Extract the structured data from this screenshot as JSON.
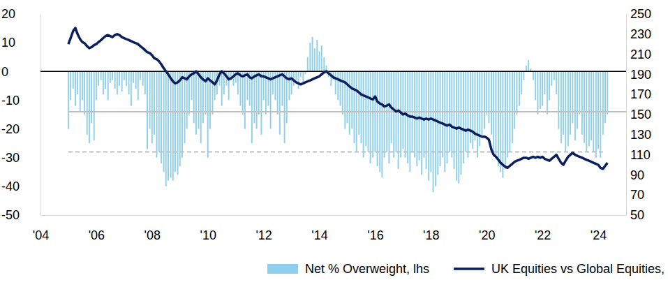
{
  "chart_data": {
    "type": "bar",
    "x": [
      2005,
      2005.08,
      2005.17,
      2005.25,
      2005.33,
      2005.42,
      2005.5,
      2005.58,
      2005.67,
      2005.75,
      2005.83,
      2005.92,
      2006,
      2006.08,
      2006.17,
      2006.25,
      2006.33,
      2006.42,
      2006.5,
      2006.58,
      2006.67,
      2006.75,
      2006.83,
      2006.92,
      2007,
      2007.08,
      2007.17,
      2007.25,
      2007.33,
      2007.42,
      2007.5,
      2007.58,
      2007.67,
      2007.75,
      2007.83,
      2007.92,
      2008,
      2008.08,
      2008.17,
      2008.25,
      2008.33,
      2008.42,
      2008.5,
      2008.58,
      2008.67,
      2008.75,
      2008.83,
      2008.92,
      2009,
      2009.08,
      2009.17,
      2009.25,
      2009.33,
      2009.42,
      2009.5,
      2009.58,
      2009.67,
      2009.75,
      2009.83,
      2009.92,
      2010,
      2010.08,
      2010.17,
      2010.25,
      2010.33,
      2010.42,
      2010.5,
      2010.58,
      2010.67,
      2010.75,
      2010.83,
      2010.92,
      2011,
      2011.08,
      2011.17,
      2011.25,
      2011.33,
      2011.42,
      2011.5,
      2011.58,
      2011.67,
      2011.75,
      2011.83,
      2011.92,
      2012,
      2012.08,
      2012.17,
      2012.25,
      2012.33,
      2012.42,
      2012.5,
      2012.58,
      2012.67,
      2012.75,
      2012.83,
      2012.92,
      2013,
      2013.08,
      2013.17,
      2013.25,
      2013.33,
      2013.42,
      2013.5,
      2013.58,
      2013.67,
      2013.75,
      2013.83,
      2013.92,
      2014,
      2014.08,
      2014.17,
      2014.25,
      2014.33,
      2014.42,
      2014.5,
      2014.58,
      2014.67,
      2014.75,
      2014.83,
      2014.92,
      2015,
      2015.08,
      2015.17,
      2015.25,
      2015.33,
      2015.42,
      2015.5,
      2015.58,
      2015.67,
      2015.75,
      2015.83,
      2015.92,
      2016,
      2016.08,
      2016.17,
      2016.25,
      2016.33,
      2016.42,
      2016.5,
      2016.58,
      2016.67,
      2016.75,
      2016.83,
      2016.92,
      2017,
      2017.08,
      2017.17,
      2017.25,
      2017.33,
      2017.42,
      2017.5,
      2017.58,
      2017.67,
      2017.75,
      2017.83,
      2017.92,
      2018,
      2018.08,
      2018.17,
      2018.25,
      2018.33,
      2018.42,
      2018.5,
      2018.58,
      2018.67,
      2018.75,
      2018.83,
      2018.92,
      2019,
      2019.08,
      2019.17,
      2019.25,
      2019.33,
      2019.42,
      2019.5,
      2019.58,
      2019.67,
      2019.75,
      2019.83,
      2019.92,
      2020,
      2020.08,
      2020.17,
      2020.25,
      2020.33,
      2020.42,
      2020.5,
      2020.58,
      2020.67,
      2020.75,
      2020.83,
      2020.92,
      2021,
      2021.08,
      2021.17,
      2021.25,
      2021.33,
      2021.42,
      2021.5,
      2021.58,
      2021.67,
      2021.75,
      2021.83,
      2021.92,
      2022,
      2022.08,
      2022.17,
      2022.25,
      2022.33,
      2022.42,
      2022.5,
      2022.58,
      2022.67,
      2022.75,
      2022.83,
      2022.92,
      2023,
      2023.08,
      2023.17,
      2023.25,
      2023.33,
      2023.42,
      2023.5,
      2023.58,
      2023.67,
      2023.75,
      2023.83,
      2023.92,
      2024,
      2024.08,
      2024.17,
      2024.25,
      2024.33
    ],
    "xlim": [
      2004,
      2025
    ],
    "xticks": [
      {
        "value": 2004,
        "label": "'04"
      },
      {
        "value": 2006,
        "label": "'06"
      },
      {
        "value": 2008,
        "label": "'08"
      },
      {
        "value": 2010,
        "label": "'10"
      },
      {
        "value": 2012,
        "label": "'12"
      },
      {
        "value": 2014,
        "label": "'14"
      },
      {
        "value": 2016,
        "label": "'16"
      },
      {
        "value": 2018,
        "label": "'18"
      },
      {
        "value": 2020,
        "label": "'20"
      },
      {
        "value": 2022,
        "label": "'22"
      },
      {
        "value": 2024,
        "label": "'24"
      }
    ],
    "ylim": [
      -50,
      20
    ],
    "yticks": [
      -50,
      -40,
      -30,
      -20,
      -10,
      0,
      10,
      20
    ],
    "y2lim": [
      50,
      250
    ],
    "y2ticks": [
      50,
      70,
      90,
      110,
      130,
      150,
      170,
      190,
      210,
      230,
      250
    ],
    "legend": "bottom",
    "series": [
      {
        "name": "Net % Overweight, lhs",
        "type": "bar",
        "color": "#8ecfee",
        "values": [
          -20,
          -10,
          -6,
          -12,
          -8,
          -14,
          -10,
          -15,
          -22,
          -25,
          -18,
          -24,
          -10,
          -5,
          -3,
          -8,
          -6,
          -10,
          -4,
          -3,
          -6,
          -8,
          -5,
          -7,
          -3,
          -5,
          -8,
          -12,
          -4,
          -6,
          -10,
          -3,
          -5,
          -8,
          -27,
          -20,
          -25,
          -22,
          -30,
          -28,
          -32,
          -35,
          -40,
          -38,
          -37,
          -38,
          -35,
          -36,
          -33,
          -30,
          -25,
          -20,
          -15,
          -10,
          -18,
          -22,
          -20,
          -25,
          -18,
          -15,
          -30,
          -20,
          -15,
          -10,
          -8,
          -5,
          -12,
          -8,
          -5,
          -10,
          -3,
          -5,
          -4,
          -8,
          -12,
          -15,
          -20,
          -10,
          -12,
          -25,
          -18,
          -20,
          -15,
          -22,
          -10,
          -15,
          -12,
          -20,
          -8,
          -10,
          -15,
          -22,
          -12,
          -25,
          -18,
          -10,
          -8,
          -5,
          -3,
          -6,
          -2,
          -4,
          -1,
          5,
          10,
          12,
          8,
          11,
          7,
          9,
          5,
          2,
          -2,
          -5,
          -3,
          -8,
          -10,
          -12,
          -15,
          -20,
          -18,
          -22,
          -20,
          -25,
          -28,
          -22,
          -25,
          -30,
          -26,
          -28,
          -32,
          -30,
          -28,
          -33,
          -35,
          -37,
          -30,
          -28,
          -32,
          -25,
          -30,
          -28,
          -34,
          -30,
          -27,
          -30,
          -32,
          -35,
          -28,
          -30,
          -33,
          -31,
          -36,
          -30,
          -34,
          -38,
          -35,
          -42,
          -40,
          -36,
          -33,
          -30,
          -35,
          -32,
          -28,
          -30,
          -34,
          -38,
          -39,
          -36,
          -32,
          -28,
          -30,
          -25,
          -27,
          -24,
          -30,
          -26,
          -22,
          -20,
          -15,
          -18,
          -22,
          -28,
          -30,
          -33,
          -35,
          -37,
          -34,
          -30,
          -28,
          -25,
          -20,
          -15,
          -12,
          -8,
          -3,
          2,
          4,
          1,
          -3,
          -10,
          -15,
          -13,
          -12,
          -8,
          -15,
          -10,
          -5,
          -3,
          -8,
          -20,
          -25,
          -22,
          -28,
          -26,
          -22,
          -18,
          -24,
          -20,
          -15,
          -22,
          -25,
          -28,
          -26,
          -24,
          -28,
          -30,
          -27,
          -30,
          -22,
          -18,
          -15
        ]
      },
      {
        "name": "UK Equities vs Global Equities, rhs",
        "type": "line",
        "axis": "y2",
        "color": "#0b1f5e",
        "line_style": "solid",
        "values": [
          220,
          226,
          233,
          236,
          230,
          225,
          222,
          221,
          218,
          216,
          217,
          219,
          220,
          222,
          224,
          226,
          228,
          229,
          228,
          227,
          229,
          230,
          229,
          227,
          226,
          225,
          224,
          223,
          222,
          221,
          220,
          218,
          216,
          214,
          212,
          211,
          209,
          206,
          205,
          203,
          200,
          196,
          193,
          190,
          186,
          183,
          181,
          182,
          184,
          187,
          186,
          185,
          188,
          190,
          191,
          193,
          190,
          187,
          185,
          183,
          186,
          184,
          182,
          180,
          184,
          190,
          193,
          191,
          188,
          185,
          186,
          188,
          190,
          191,
          189,
          188,
          189,
          190,
          187,
          186,
          188,
          189,
          190,
          188,
          188,
          187,
          186,
          185,
          186,
          187,
          188,
          189,
          190,
          188,
          186,
          185,
          186,
          184,
          182,
          181,
          180,
          181,
          182,
          183,
          184,
          185,
          186,
          187,
          188,
          190,
          192,
          193,
          191,
          189,
          187,
          186,
          185,
          184,
          183,
          182,
          180,
          178,
          176,
          175,
          174,
          172,
          170,
          169,
          168,
          167,
          166,
          165,
          168,
          163,
          161,
          160,
          158,
          159,
          160,
          157,
          155,
          153,
          154,
          152,
          150,
          151,
          149,
          148,
          148,
          147,
          146,
          147,
          146,
          145,
          146,
          145,
          146,
          145,
          144,
          143,
          142,
          141,
          140,
          139,
          140,
          138,
          137,
          136,
          137,
          136,
          135,
          134,
          135,
          134,
          133,
          131,
          130,
          129,
          128,
          128,
          127,
          125,
          115,
          110,
          108,
          105,
          102,
          100,
          98,
          97,
          99,
          101,
          103,
          104,
          105,
          106,
          107,
          107,
          106,
          107,
          108,
          107,
          108,
          107,
          108,
          106,
          105,
          104,
          106,
          108,
          110,
          106,
          102,
          100,
          104,
          108,
          110,
          112,
          110,
          109,
          108,
          107,
          106,
          105,
          104,
          103,
          102,
          101,
          100,
          97,
          96,
          99,
          102
        ]
      },
      {
        "type": "line",
        "color": "#bfbfbf",
        "line_style": "solid",
        "x": [
          2005,
          2025
        ],
        "values": [
          -14,
          -14
        ]
      },
      {
        "type": "line",
        "color": "#bfbfbf",
        "line_style": "dashed",
        "x": [
          2005,
          2024.2
        ],
        "values": [
          -28,
          -28
        ]
      }
    ]
  }
}
